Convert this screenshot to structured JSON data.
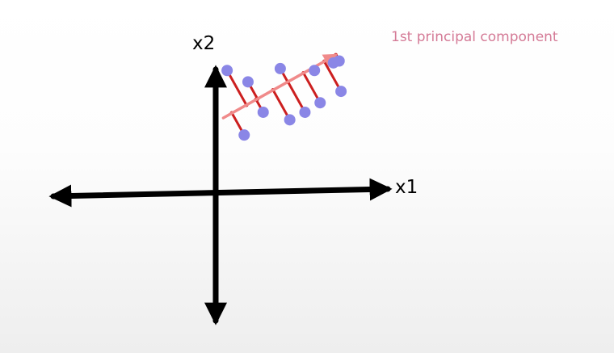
{
  "labels": {
    "x_axis": "x1",
    "y_axis": "x2",
    "component": "1st principal component"
  },
  "colors": {
    "axis": "#000000",
    "point": "#8a86e6",
    "projection": "#cc1f1f",
    "component_line": "#f08a8a",
    "component_label": "#d47a96"
  },
  "points": [
    {
      "x": 0.6,
      "y": 6.5
    },
    {
      "x": 1.5,
      "y": 3.1
    },
    {
      "x": 1.7,
      "y": 5.9
    },
    {
      "x": 2.5,
      "y": 4.3
    },
    {
      "x": 3.4,
      "y": 6.6
    },
    {
      "x": 3.9,
      "y": 3.9
    },
    {
      "x": 4.7,
      "y": 4.3
    },
    {
      "x": 5.2,
      "y": 6.5
    },
    {
      "x": 5.5,
      "y": 4.8
    },
    {
      "x": 6.2,
      "y": 6.9
    },
    {
      "x": 6.6,
      "y": 5.4
    },
    {
      "x": 6.5,
      "y": 7.0
    }
  ],
  "component": {
    "start": {
      "x": 0.4,
      "y": 4.0
    },
    "end": {
      "x": 6.3,
      "y": 7.3
    }
  }
}
